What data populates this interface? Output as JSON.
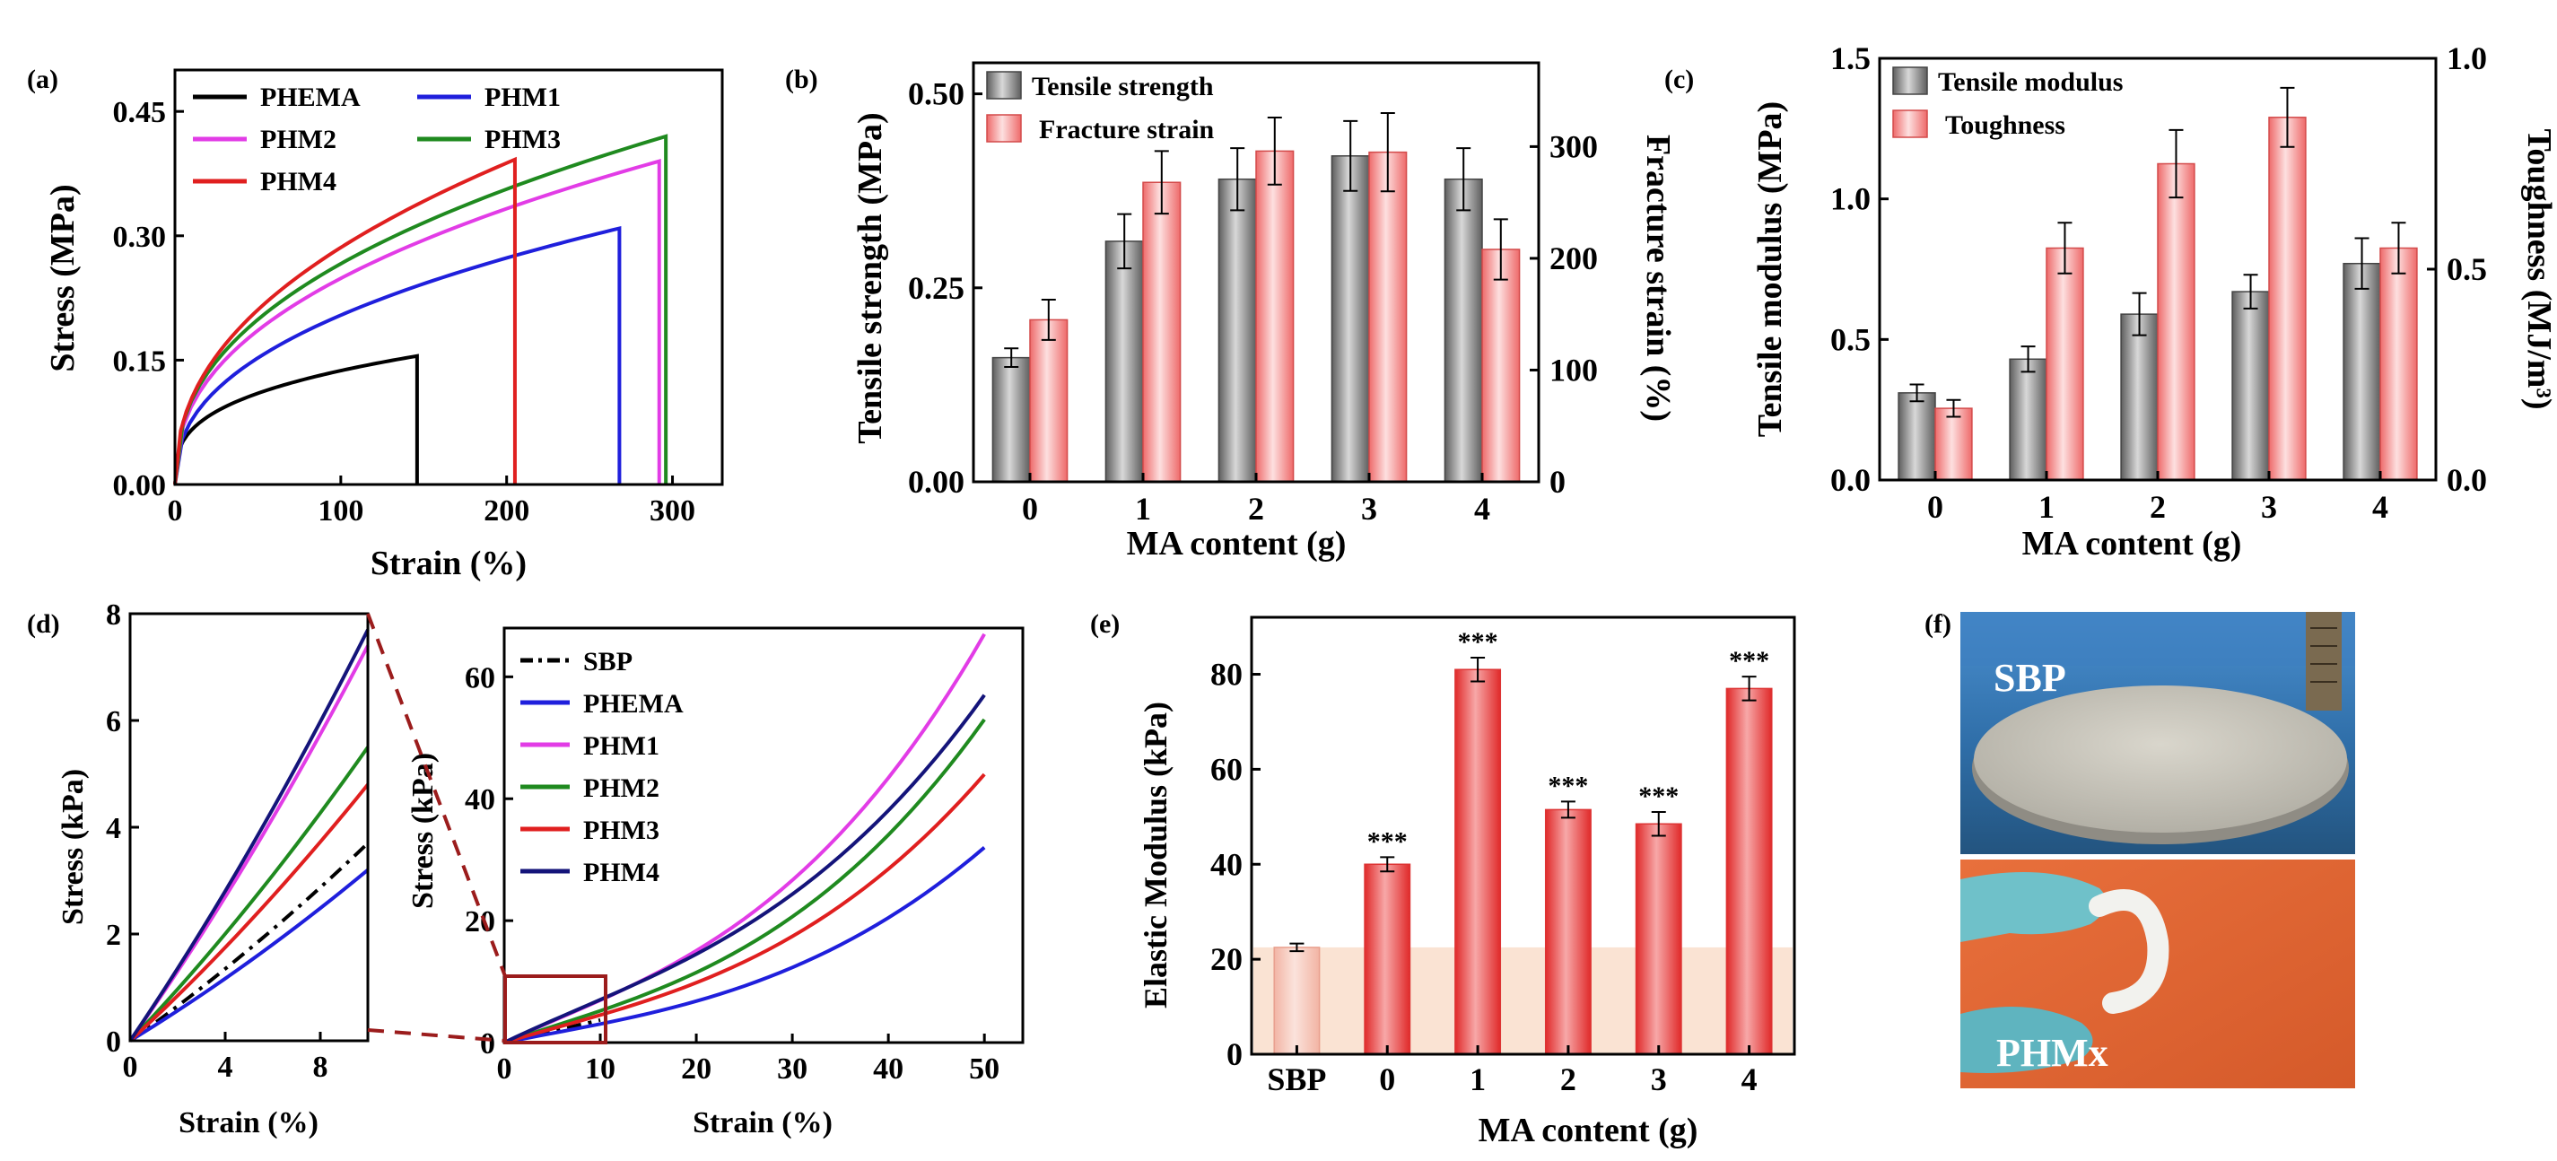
{
  "colors": {
    "phema": "#000000",
    "phm1": "#1f1fdc",
    "phm2": "#e23ce6",
    "phm3": "#1f8a1f",
    "phm4": "#e01f1f",
    "phm4_d": "#14147a",
    "gray": "#808080",
    "pink": "#f2a5a5",
    "red": "#e84545",
    "shade": "#fae3d3"
  },
  "chart_data": [
    {
      "id": "a",
      "panel_label": "(a)",
      "type": "line",
      "xlabel": "Strain (%)",
      "ylabel": "Stress (MPa)",
      "xlim": [
        0,
        330
      ],
      "ylim": [
        0,
        0.5
      ],
      "xticks": [
        "0",
        "100",
        "200",
        "300"
      ],
      "yticks": [
        "0.00",
        "0.15",
        "0.30",
        "0.45"
      ],
      "series": [
        {
          "name": "PHEMA",
          "key": "phema",
          "break": 146,
          "k": 0.155,
          "p": 0.32
        },
        {
          "name": "PHM1",
          "key": "phm1",
          "break": 268,
          "k": 0.309,
          "p": 0.42
        },
        {
          "name": "PHM2",
          "key": "phm2",
          "break": 292,
          "k": 0.39,
          "p": 0.42
        },
        {
          "name": "PHM3",
          "key": "phm3",
          "break": 296,
          "k": 0.42,
          "p": 0.42
        },
        {
          "name": "PHM4",
          "key": "phm4",
          "break": 205,
          "k": 0.392,
          "p": 0.44
        }
      ]
    },
    {
      "id": "b",
      "panel_label": "(b)",
      "type": "bar",
      "xlabel": "MA content (g)",
      "ylabel": "Tensile strength (MPa)",
      "ylabel_right": "Fracture strain (%)",
      "categories": [
        "0",
        "1",
        "2",
        "3",
        "4"
      ],
      "ylim": [
        0,
        0.54
      ],
      "ylim_right": [
        0,
        375
      ],
      "yticks": [
        "0.00",
        "0.25",
        "0.50"
      ],
      "yticks_right": [
        "0",
        "100",
        "200",
        "300"
      ],
      "series": [
        {
          "name": "Tensile strength",
          "axis": "left",
          "values": [
            0.16,
            0.31,
            0.39,
            0.42,
            0.39
          ],
          "errors": [
            0.012,
            0.035,
            0.04,
            0.045,
            0.04
          ]
        },
        {
          "name": "Fracture strain",
          "axis": "right",
          "values": [
            145,
            268,
            296,
            295,
            208
          ],
          "errors": [
            18,
            28,
            30,
            35,
            27
          ]
        }
      ]
    },
    {
      "id": "c",
      "panel_label": "(c)",
      "type": "bar",
      "xlabel": "MA content (g)",
      "ylabel": "Tensile modulus (MPa)",
      "ylabel_right": "Toughness (MJ/m³)",
      "categories": [
        "0",
        "1",
        "2",
        "3",
        "4"
      ],
      "ylim": [
        0,
        1.5
      ],
      "ylim_right": [
        0,
        1.0
      ],
      "yticks": [
        "0.0",
        "0.5",
        "1.0",
        "1.5"
      ],
      "yticks_right": [
        "0.0",
        "0.5",
        "1.0"
      ],
      "series": [
        {
          "name": "Tensile modulus",
          "axis": "left",
          "values": [
            0.31,
            0.43,
            0.59,
            0.67,
            0.77
          ],
          "errors": [
            0.03,
            0.045,
            0.075,
            0.06,
            0.09
          ]
        },
        {
          "name": "Toughness",
          "axis": "right",
          "values": [
            0.17,
            0.55,
            0.75,
            0.86,
            0.55
          ],
          "errors": [
            0.02,
            0.06,
            0.08,
            0.07,
            0.06
          ]
        }
      ]
    },
    {
      "id": "d_inset",
      "panel_label": "(d)",
      "type": "line",
      "xlabel": "Strain (%)",
      "ylabel": "Stress (kPa)",
      "xlim": [
        0,
        10
      ],
      "ylim": [
        0,
        8
      ],
      "xticks": [
        "0",
        "4",
        "8"
      ],
      "yticks": [
        "0",
        "2",
        "4",
        "6",
        "8"
      ],
      "series": [
        {
          "name": "SBP",
          "key": "phema",
          "end": 3.7,
          "dash": true
        },
        {
          "name": "PHEMA",
          "key": "phm1",
          "end": 3.2
        },
        {
          "name": "PHM1",
          "key": "phm2",
          "end": 7.4
        },
        {
          "name": "PHM2",
          "key": "phm3",
          "end": 5.5
        },
        {
          "name": "PHM3",
          "key": "phm4",
          "end": 4.8
        },
        {
          "name": "PHM4",
          "key": "phm4_d",
          "end": 7.7
        }
      ]
    },
    {
      "id": "d_main",
      "type": "line",
      "xlabel": "Strain (%)",
      "ylabel": "Stress (kPa)",
      "xlim": [
        0,
        54
      ],
      "ylim": [
        0,
        68
      ],
      "xticks": [
        "0",
        "10",
        "20",
        "30",
        "40",
        "50"
      ],
      "yticks": [
        "0",
        "20",
        "40",
        "60"
      ],
      "series": [
        {
          "name": "SBP",
          "key": "phema",
          "dash": true,
          "end50": 0
        },
        {
          "name": "PHEMA",
          "key": "phm1",
          "end50": 32
        },
        {
          "name": "PHM1",
          "key": "phm2",
          "end50": 67
        },
        {
          "name": "PHM2",
          "key": "phm3",
          "end50": 53
        },
        {
          "name": "PHM3",
          "key": "phm4",
          "end50": 44
        },
        {
          "name": "PHM4",
          "key": "phm4_d",
          "end50": 57
        }
      ]
    },
    {
      "id": "e",
      "panel_label": "(e)",
      "type": "bar",
      "xlabel": "MA content (g)",
      "ylabel": "Elastic Modulus (kPa)",
      "categories": [
        "SBP",
        "0",
        "1",
        "2",
        "3",
        "4"
      ],
      "ylim": [
        0,
        92
      ],
      "yticks": [
        "0",
        "20",
        "40",
        "60",
        "80"
      ],
      "values": [
        22.5,
        40,
        81,
        51.5,
        48.5,
        77
      ],
      "errors": [
        0.8,
        1.5,
        2.5,
        1.7,
        2.5,
        2.5
      ],
      "significance": [
        "",
        "***",
        "***",
        "***",
        "***",
        "***"
      ]
    }
  ],
  "panel_f": {
    "label": "(f)",
    "top_caption": "SBP",
    "bottom_caption": "PHMx"
  }
}
